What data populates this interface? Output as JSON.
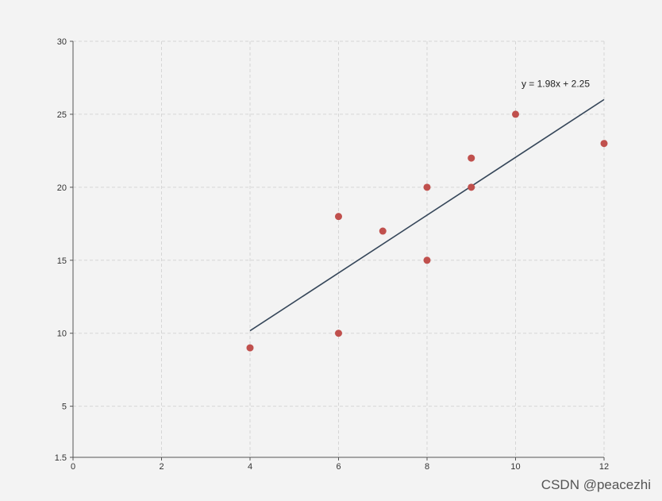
{
  "chart_data": {
    "type": "scatter",
    "title": "",
    "xlabel": "",
    "ylabel": "",
    "xlim": [
      0,
      12
    ],
    "ylim": [
      1.5,
      30
    ],
    "x_ticks": [
      "0",
      "2",
      "4",
      "6",
      "8",
      "10",
      "12"
    ],
    "y_ticks": [
      "1.5",
      "5",
      "10",
      "15",
      "20",
      "25",
      "30"
    ],
    "grid": true,
    "points": [
      {
        "x": 4,
        "y": 9
      },
      {
        "x": 6,
        "y": 10
      },
      {
        "x": 6,
        "y": 18
      },
      {
        "x": 7,
        "y": 17
      },
      {
        "x": 8,
        "y": 15
      },
      {
        "x": 8,
        "y": 20
      },
      {
        "x": 9,
        "y": 20
      },
      {
        "x": 9,
        "y": 22
      },
      {
        "x": 10,
        "y": 25
      },
      {
        "x": 12,
        "y": 23
      }
    ],
    "trendline": {
      "equation": "y = 1.98x + 2.25",
      "slope": 1.98,
      "intercept": 2.25,
      "x_start": 4,
      "x_end": 12
    },
    "colors": {
      "point": "#c0504d",
      "line": "#36475a"
    }
  },
  "watermark": "CSDN @peacezhi"
}
